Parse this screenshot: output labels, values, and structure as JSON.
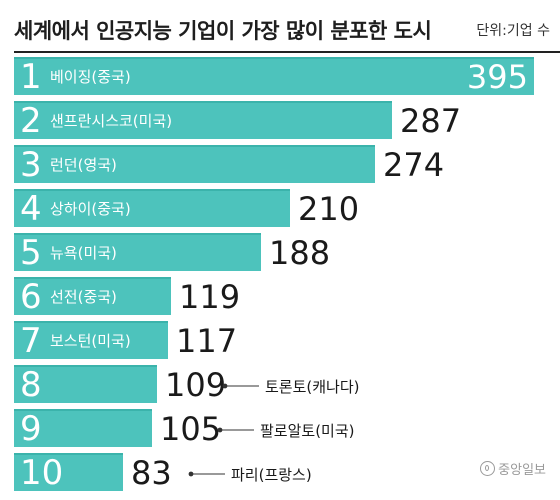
{
  "header": {
    "title": "세계에서 인공지능 기업이 가장 많이 분포한 도시",
    "unit": "단위:기업 수"
  },
  "brand": {
    "logo_text": "중앙일보"
  },
  "colors": {
    "bar": "#4dc3bc",
    "bar_top": "#3bb3ab",
    "rank_text": "#ffffff",
    "value_text": "#1a1a1a",
    "leader": "#333333"
  },
  "chart_data": {
    "type": "bar",
    "orientation": "horizontal",
    "title": "세계에서 인공지능 기업이 가장 많이 분포한 도시",
    "unit": "단위:기업 수",
    "xlim": [
      0,
      395
    ],
    "grid": false,
    "legend": "none",
    "bars": [
      {
        "rank": "1",
        "city": "베이징(중국)",
        "value": 395,
        "label_outside": false
      },
      {
        "rank": "2",
        "city": "샌프란시스코(미국)",
        "value": 287,
        "label_outside": false
      },
      {
        "rank": "3",
        "city": "런던(영국)",
        "value": 274,
        "label_outside": false
      },
      {
        "rank": "4",
        "city": "상하이(중국)",
        "value": 210,
        "label_outside": false
      },
      {
        "rank": "5",
        "city": "뉴욕(미국)",
        "value": 188,
        "label_outside": false
      },
      {
        "rank": "6",
        "city": "선전(중국)",
        "value": 119,
        "label_outside": false
      },
      {
        "rank": "7",
        "city": "보스턴(미국)",
        "value": 117,
        "label_outside": false
      },
      {
        "rank": "8",
        "city": "토론토(캐나다)",
        "value": 109,
        "label_outside": true
      },
      {
        "rank": "9",
        "city": "팔로알토(미국)",
        "value": 105,
        "label_outside": true
      },
      {
        "rank": "10",
        "city": "파리(프랑스)",
        "value": 83,
        "label_outside": true
      }
    ]
  }
}
